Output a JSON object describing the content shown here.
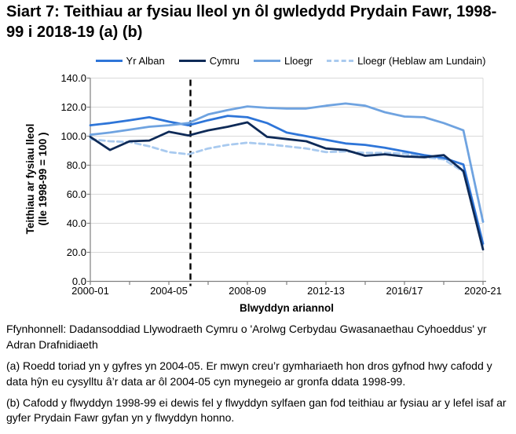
{
  "title": "Siart 7: Teithiau ar fysiau lleol yn ôl gwledydd Prydain Fawr, 1998-99 i 2018-19 (a) (b)",
  "chart_data": {
    "type": "line",
    "title": "Siart 7: Teithiau ar fysiau lleol yn ôl gwledydd Prydain Fawr, 1998-99 i 2018-19 (a) (b)",
    "xlabel": "Blwyddyn ariannol",
    "ylabel": "Teithiau ar fysiau lleol",
    "ylabel_line2": "(lle 1998-99 = 100 )",
    "ylim": [
      0,
      140
    ],
    "ytick_step": 20,
    "grid": "horizontal",
    "legend_position": "top",
    "x_tick_labels": [
      "2000-01",
      "2004-05",
      "2008-09",
      "2012-13",
      "2016/17",
      "2020-21"
    ],
    "categories": [
      "2000-01",
      "2001-02",
      "2002-03",
      "2003-04",
      "2004-05",
      "2005-06",
      "2006-07",
      "2007-08",
      "2008-09",
      "2009-10",
      "2010-11",
      "2011-12",
      "2012-13",
      "2013-14",
      "2014-15",
      "2015-16",
      "2016-17",
      "2017-18",
      "2018-19",
      "2019-20",
      "2020-21"
    ],
    "series": [
      {
        "name": "Yr Alban",
        "color": "#2e75d8",
        "dashed": false,
        "values": [
          107.5,
          109,
          111,
          113,
          110,
          107.5,
          111,
          114,
          113,
          109,
          102.5,
          100,
          97.5,
          95,
          94,
          92,
          89.5,
          87,
          85,
          80.5,
          26
        ]
      },
      {
        "name": "Cymru",
        "color": "#0e2a57",
        "dashed": false,
        "values": [
          99.5,
          90.5,
          96.5,
          97,
          103,
          100.5,
          104,
          106.5,
          109.5,
          99.5,
          98,
          96.5,
          91.5,
          90.5,
          86.5,
          87.5,
          86,
          85.5,
          87,
          76,
          22
        ]
      },
      {
        "name": "Lloegr",
        "color": "#6fa3e0",
        "dashed": false,
        "values": [
          101,
          102.5,
          104.5,
          106.5,
          107.5,
          109,
          115,
          118,
          120.5,
          119.5,
          119,
          119,
          121,
          122.5,
          121,
          116.5,
          113.5,
          113,
          109,
          104,
          41
        ]
      },
      {
        "name": "Lloegr (Heblaw am Lundain)",
        "color": "#a9caef",
        "dashed": true,
        "values": [
          98,
          96.5,
          96,
          93,
          89,
          87.5,
          91.5,
          94,
          95.5,
          94.5,
          93,
          91.5,
          89,
          89.5,
          88.5,
          88.5,
          88,
          85.5,
          84,
          75.5,
          24
        ]
      }
    ],
    "break_line": {
      "x_index": 5.1,
      "note": "toriad yn y gyfres 2004-05"
    },
    "colors": {
      "gridline": "#d9d9d9",
      "axis": "#808080",
      "break_line": "#000000"
    }
  },
  "footnotes": {
    "source": "Ffynhonnell: Dadansoddiad Llywodraeth Cymru o 'Arolwg Cerbydau Gwasanaethau Cyhoeddus' yr Adran Drafnidiaeth",
    "note_a": "(a) Roedd toriad yn y gyfres yn 2004-05. Er mwyn creu’r gymhariaeth hon dros gyfnod hwy cafodd y data hŷn eu cysylltu â’r data ar ôl 2004-05 cyn mynegeio ar gronfa ddata 1998-99.",
    "note_b": "(b) Cafodd y flwyddyn 1998-99 ei dewis fel y flwyddyn sylfaen gan fod teithiau ar fysiau ar y lefel isaf ar gyfer Prydain Fawr gyfan yn y flwyddyn honno."
  }
}
